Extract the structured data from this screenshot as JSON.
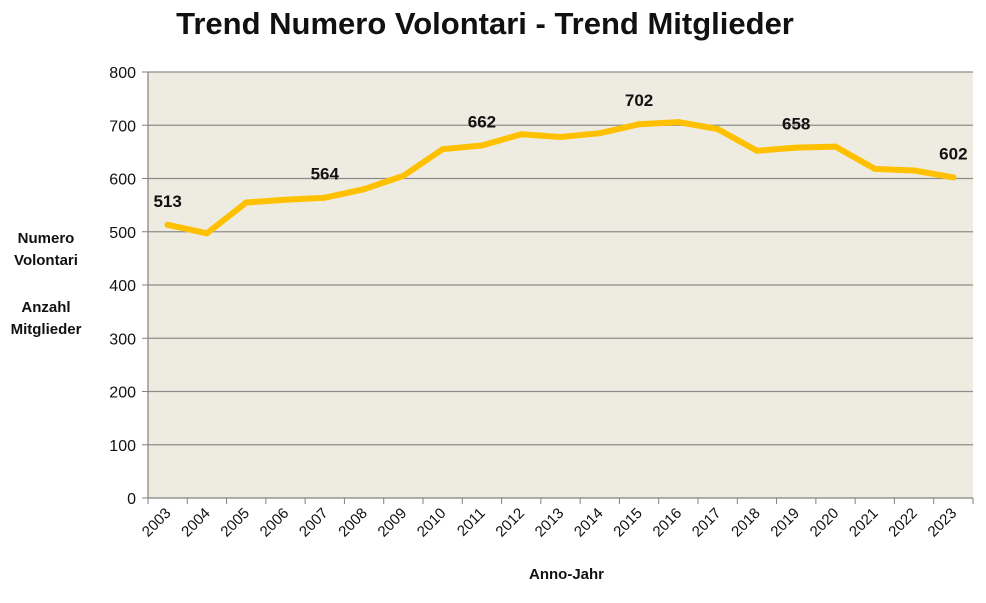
{
  "title": "Trend Numero Volontari - Trend Mitglieder",
  "y_axis_label_lines": [
    "Numero",
    "Volontari",
    "Anzahl",
    "Mitglieder"
  ],
  "x_axis_label": "Anno-Jahr",
  "colors": {
    "line": "#FFC000",
    "plot_background": "#EEEBE0",
    "gridline": "#8C8C8C",
    "axis": "#808080"
  },
  "chart_data": {
    "type": "line",
    "title": "Trend Numero Volontari - Trend Mitglieder",
    "xlabel": "Anno-Jahr",
    "ylabel": "Numero Volontari / Anzahl Mitglieder",
    "ylim": [
      0,
      800
    ],
    "yticks": [
      0,
      100,
      200,
      300,
      400,
      500,
      600,
      700,
      800
    ],
    "grid": true,
    "categories": [
      "2003",
      "2004",
      "2005",
      "2006",
      "2007",
      "2008",
      "2009",
      "2010",
      "2011",
      "2012",
      "2013",
      "2014",
      "2015",
      "2016",
      "2017",
      "2018",
      "2019",
      "2020",
      "2021",
      "2022",
      "2023"
    ],
    "series": [
      {
        "values": [
          513,
          497,
          555,
          560,
          564,
          580,
          605,
          655,
          662,
          683,
          678,
          685,
          702,
          706,
          693,
          652,
          658,
          660,
          618,
          615,
          602
        ]
      }
    ],
    "data_labels": [
      {
        "category": "2003",
        "text": "513"
      },
      {
        "category": "2007",
        "text": "564"
      },
      {
        "category": "2011",
        "text": "662"
      },
      {
        "category": "2015",
        "text": "702"
      },
      {
        "category": "2019",
        "text": "658"
      },
      {
        "category": "2023",
        "text": "602"
      }
    ]
  }
}
